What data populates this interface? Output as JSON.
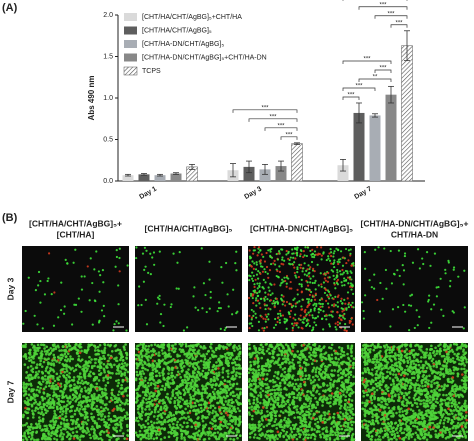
{
  "chart_data": {
    "type": "bar",
    "panel_label": "(A)",
    "y_label": "Abs 490 nm",
    "categories": [
      "Day 1",
      "Day 3",
      "Day 7"
    ],
    "series": [
      {
        "name": "[CHT/HA/CHT/AgBG]₅+CHT/HA",
        "color": "#dadada",
        "values": [
          0.07,
          0.13,
          0.19
        ],
        "errors": [
          0.01,
          0.08,
          0.07
        ]
      },
      {
        "name": "[CHT/HA/CHT/AgBG]₅",
        "color": "#5e5e5e",
        "values": [
          0.08,
          0.17,
          0.82
        ],
        "errors": [
          0.01,
          0.07,
          0.12
        ]
      },
      {
        "name": "[CHT/HA-DN/CHT/AgBG]₅",
        "color": "#a8adb4",
        "values": [
          0.07,
          0.14,
          0.79
        ],
        "errors": [
          0.01,
          0.06,
          0.02
        ]
      },
      {
        "name": "[CHT/HA-DN/CHT/AgBG]₅+CHT/HA-DN",
        "color": "#888888",
        "values": [
          0.09,
          0.18,
          1.04
        ],
        "errors": [
          0.01,
          0.06,
          0.1
        ]
      },
      {
        "name": "TCPS",
        "color": "#ffffff",
        "hatch": true,
        "values": [
          0.17,
          0.45,
          1.63
        ],
        "errors": [
          0.03,
          0.01,
          0.18
        ]
      }
    ],
    "ylim": [
      0,
      2
    ],
    "yticks": [
      {
        "value": 0,
        "label": "0.0"
      },
      {
        "value": 0.5,
        "label": "0.5"
      },
      {
        "value": 1,
        "label": "1.0"
      },
      {
        "value": 1.5,
        "label": "1.5"
      },
      {
        "value": 2,
        "label": "2.0"
      }
    ],
    "legend": "top-left",
    "significance": [
      {
        "category": 1,
        "from": 3,
        "to": 4,
        "label": "***"
      },
      {
        "category": 1,
        "from": 2,
        "to": 4,
        "label": "***"
      },
      {
        "category": 1,
        "from": 1,
        "to": 4,
        "label": "***"
      },
      {
        "category": 1,
        "from": 0,
        "to": 4,
        "label": "***"
      },
      {
        "category": 2,
        "from": 0,
        "to": 1,
        "label": "***"
      },
      {
        "category": 2,
        "from": 0,
        "to": 2,
        "label": "***"
      },
      {
        "category": 2,
        "from": 1,
        "to": 3,
        "label": "**"
      },
      {
        "category": 2,
        "from": 2,
        "to": 3,
        "label": "***"
      },
      {
        "category": 2,
        "from": 0,
        "to": 3,
        "label": "***"
      },
      {
        "category": 2,
        "from": 3,
        "to": 4,
        "label": "***"
      },
      {
        "category": 2,
        "from": 2,
        "to": 4,
        "label": "***"
      },
      {
        "category": 2,
        "from": 1,
        "to": 4,
        "label": "***"
      },
      {
        "category": 2,
        "from": 0,
        "to": 4,
        "label": "***"
      }
    ]
  },
  "panel_b": {
    "panel_label": "(B)",
    "columns": [
      [
        "[CHT/HA/CHT/AgBG]₅+",
        "[CHT/HA]"
      ],
      [
        "[CHT/HA/CHT/AgBG]₅"
      ],
      [
        "[CHT/HA-DN/CHT/AgBG]₅"
      ],
      [
        "[CHT/HA-DN/CHT/AgBG]₅+",
        "CHT/HA-DN"
      ]
    ],
    "rows": [
      "Day 3",
      "Day 7"
    ]
  }
}
